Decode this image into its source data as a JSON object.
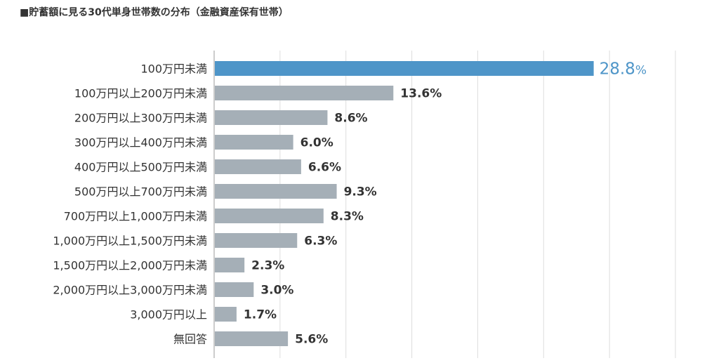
{
  "chart_data": {
    "type": "bar",
    "orientation": "horizontal",
    "title": "■貯蓄額に見る30代単身世帯数の分布（金融資産保有世帯）",
    "unit": "%",
    "categories": [
      "100万円未満",
      "100万円以上200万円未満",
      "200万円以上300万円未満",
      "300万円以上400万円未満",
      "400万円以上500万円未満",
      "500万円以上700万円未満",
      "700万円以上1,000万円未満",
      "1,000万円以上1,500万円未満",
      "1,500万円以上2,000万円未満",
      "2,000万円以上3,000万円未満",
      "3,000万円以上",
      "無回答"
    ],
    "values": [
      28.8,
      13.6,
      8.6,
      6.0,
      6.6,
      9.3,
      8.3,
      6.3,
      2.3,
      3.0,
      1.7,
      5.6
    ],
    "value_labels": [
      "28.8",
      "13.6%",
      "8.6%",
      "6.0%",
      "6.6%",
      "9.3%",
      "8.3%",
      "6.3%",
      "2.3%",
      "3.0%",
      "1.7%",
      "5.6%"
    ],
    "highlight_index": 0,
    "xlim": [
      0,
      35
    ],
    "grid": true,
    "legend": "none",
    "colors": {
      "highlight": "#4e95c8",
      "bar": "#a5afb7",
      "grid": "#dddddd",
      "axis": "#999999",
      "text": "#333333"
    }
  }
}
